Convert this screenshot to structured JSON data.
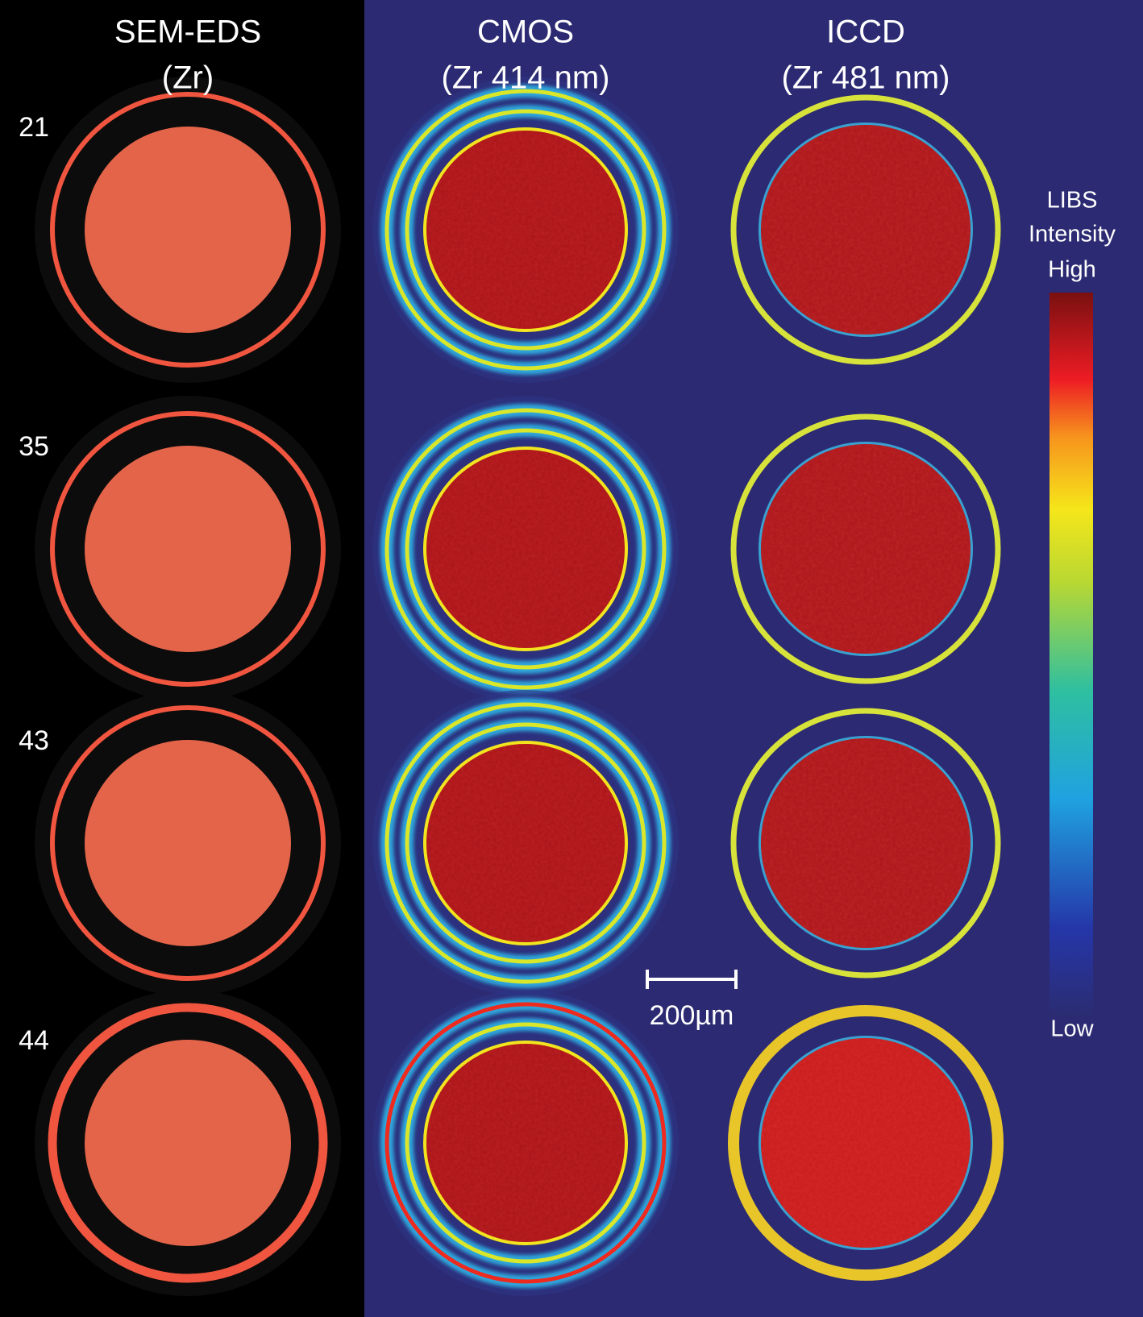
{
  "columns": [
    {
      "title": "SEM-EDS",
      "subtitle": "(Zr)"
    },
    {
      "title": "CMOS",
      "subtitle": "(Zr 414 nm)"
    },
    {
      "title": "ICCD",
      "subtitle": "(Zr 481 nm)"
    }
  ],
  "rows": [
    {
      "label": "21"
    },
    {
      "label": "35"
    },
    {
      "label": "43"
    },
    {
      "label": "44"
    }
  ],
  "colorbar": {
    "lines": [
      "LIBS",
      "Intensity",
      "High"
    ],
    "low": "Low"
  },
  "scale_bar": {
    "label": "200µm"
  }
}
